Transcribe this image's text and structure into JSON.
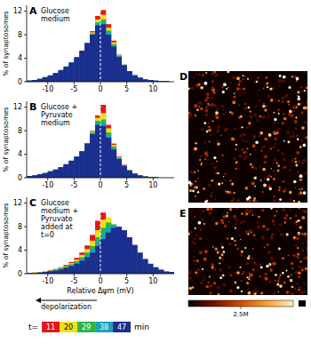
{
  "chart_data": [
    {
      "type": "histogram",
      "panel": "A",
      "title": "Glucose medium",
      "y_label": "% of synaptosomes",
      "bins": [
        -14,
        -13,
        -12,
        -11,
        -10,
        -9,
        -8,
        -7,
        -6,
        -5,
        -4,
        -3,
        -2,
        -1,
        0,
        1,
        2,
        3,
        4,
        5,
        6,
        7,
        8,
        9,
        10,
        11,
        12,
        13,
        14
      ],
      "xlim": [
        -14,
        14
      ],
      "xticks": [
        -10,
        -5,
        0,
        5,
        10
      ],
      "ylim": [
        0,
        13
      ],
      "yticks": [
        0,
        4,
        8,
        12
      ],
      "reference_lines": [
        {
          "x": 0,
          "line_style": "dashed",
          "color": "#ffffff"
        }
      ],
      "series": [
        {
          "color": "#e8141b",
          "values": [
            0.1,
            0.2,
            0.3,
            0.5,
            0.7,
            1.0,
            1.4,
            2.0,
            2.7,
            3.6,
            4.8,
            6.4,
            8.6,
            11.2,
            12.2,
            9.8,
            7.0,
            4.6,
            2.9,
            1.7,
            1.0,
            0.6,
            0.3,
            0.2,
            0.1,
            0.1,
            0,
            0
          ]
        },
        {
          "color": "#f2e01c",
          "values": [
            0.1,
            0.2,
            0.4,
            0.6,
            0.9,
            1.2,
            1.7,
            2.3,
            3.0,
            3.9,
            5.0,
            6.5,
            8.4,
            10.6,
            11.4,
            9.2,
            6.7,
            4.5,
            2.9,
            1.8,
            1.1,
            0.6,
            0.4,
            0.2,
            0.1,
            0.1,
            0,
            0
          ]
        },
        {
          "color": "#2fb34a",
          "values": [
            0.2,
            0.3,
            0.4,
            0.7,
            1.0,
            1.4,
            1.8,
            2.4,
            3.1,
            4.0,
            5.1,
            6.5,
            8.2,
            10.1,
            10.6,
            8.7,
            6.4,
            4.4,
            2.9,
            1.8,
            1.1,
            0.7,
            0.4,
            0.3,
            0.1,
            0.1,
            0.1,
            0
          ]
        },
        {
          "color": "#1aa3b8",
          "values": [
            0.2,
            0.3,
            0.5,
            0.7,
            1.0,
            1.4,
            1.9,
            2.5,
            3.2,
            4.1,
            5.2,
            6.6,
            8.1,
            9.8,
            10.2,
            8.4,
            6.2,
            4.3,
            2.8,
            1.8,
            1.1,
            0.7,
            0.4,
            0.3,
            0.2,
            0.1,
            0.1,
            0
          ]
        },
        {
          "color": "#1b2f8f",
          "values": [
            0.2,
            0.3,
            0.5,
            0.8,
            1.1,
            1.5,
            2.0,
            2.6,
            3.3,
            4.2,
            5.3,
            6.6,
            8.0,
            9.6,
            9.8,
            8.0,
            6.0,
            4.2,
            2.8,
            1.8,
            1.1,
            0.7,
            0.4,
            0.3,
            0.2,
            0.1,
            0.1,
            0
          ]
        }
      ]
    },
    {
      "type": "histogram",
      "panel": "B",
      "title": "Glucose + Pyruvate medium",
      "y_label": "% of synaptosomes",
      "bins": [
        -14,
        -13,
        -12,
        -11,
        -10,
        -9,
        -8,
        -7,
        -6,
        -5,
        -4,
        -3,
        -2,
        -1,
        0,
        1,
        2,
        3,
        4,
        5,
        6,
        7,
        8,
        9,
        10,
        11,
        12,
        13,
        14
      ],
      "xlim": [
        -14,
        14
      ],
      "xticks": [
        -10,
        -5,
        0,
        5,
        10
      ],
      "ylim": [
        0,
        13
      ],
      "yticks": [
        0,
        4,
        8,
        12
      ],
      "reference_lines": [
        {
          "x": 0,
          "line_style": "dashed",
          "color": "#ffffff"
        }
      ],
      "series": [
        {
          "color": "#e8141b",
          "values": [
            0.2,
            0.3,
            0.4,
            0.6,
            0.9,
            1.2,
            1.6,
            2.1,
            2.7,
            3.4,
            4.4,
            5.9,
            8.0,
            10.6,
            12.4,
            9.0,
            5.8,
            3.6,
            2.2,
            1.3,
            0.7,
            0.4,
            0.2,
            0.1,
            0.1,
            0,
            0,
            0
          ]
        },
        {
          "color": "#f2e01c",
          "values": [
            0.2,
            0.3,
            0.5,
            0.7,
            1.0,
            1.3,
            1.7,
            2.2,
            2.8,
            3.5,
            4.5,
            5.9,
            7.9,
            10.2,
            11.0,
            8.4,
            5.6,
            3.5,
            2.1,
            1.3,
            0.7,
            0.4,
            0.2,
            0.1,
            0.1,
            0,
            0,
            0
          ]
        },
        {
          "color": "#2fb34a",
          "values": [
            0.3,
            0.4,
            0.5,
            0.7,
            1.0,
            1.3,
            1.7,
            2.2,
            2.8,
            3.5,
            4.5,
            5.9,
            7.7,
            9.7,
            9.9,
            7.7,
            5.3,
            3.4,
            2.1,
            1.3,
            0.7,
            0.4,
            0.2,
            0.1,
            0.1,
            0,
            0,
            0
          ]
        },
        {
          "color": "#1aa3b8",
          "values": [
            0.3,
            0.4,
            0.6,
            0.8,
            1.1,
            1.4,
            1.8,
            2.3,
            2.9,
            3.6,
            4.5,
            5.9,
            7.6,
            9.3,
            9.3,
            7.2,
            5.0,
            3.3,
            2.0,
            1.2,
            0.7,
            0.4,
            0.2,
            0.1,
            0.1,
            0,
            0,
            0
          ]
        },
        {
          "color": "#1b2f8f",
          "values": [
            0.3,
            0.4,
            0.6,
            0.8,
            1.1,
            1.4,
            1.8,
            2.3,
            2.9,
            3.6,
            4.5,
            5.8,
            7.4,
            9.0,
            8.8,
            6.8,
            4.8,
            3.2,
            2.0,
            1.2,
            0.7,
            0.4,
            0.2,
            0.1,
            0.1,
            0,
            0,
            0
          ]
        }
      ]
    },
    {
      "type": "histogram",
      "panel": "C",
      "title": "Glucose medium + Pyruvate added at t=0",
      "y_label": "% of synaptosomes",
      "x_label": "Relative Δψm (mV)",
      "annotations": [
        {
          "text": "depolarization"
        }
      ],
      "legend": "bottom",
      "legend_title": "t=",
      "legend_unit": "min",
      "bins": [
        -14,
        -13,
        -12,
        -11,
        -10,
        -9,
        -8,
        -7,
        -6,
        -5,
        -4,
        -3,
        -2,
        -1,
        0,
        1,
        2,
        3,
        4,
        5,
        6,
        7,
        8,
        9,
        10,
        11,
        12,
        13,
        14
      ],
      "xlim": [
        -14,
        14
      ],
      "xticks": [
        -10,
        -5,
        0,
        5,
        10
      ],
      "ylim": [
        0,
        13
      ],
      "yticks": [
        0,
        4,
        8,
        12
      ],
      "reference_lines": [
        {
          "x": 0,
          "line_style": "dashed",
          "color": "#ffffff"
        }
      ],
      "series": [
        {
          "name": "11",
          "color": "#e8141b",
          "values": [
            0.1,
            0.2,
            0.3,
            0.4,
            0.6,
            0.8,
            1.1,
            1.5,
            2.0,
            2.7,
            3.6,
            4.8,
            6.6,
            9.0,
            10.4,
            9.4,
            7.2,
            5.2,
            3.6,
            2.4,
            1.6,
            1.0,
            0.6,
            0.4,
            0.2,
            0.1,
            0.1,
            0
          ]
        },
        {
          "name": "20",
          "color": "#f2e01c",
          "values": [
            0.1,
            0.2,
            0.3,
            0.4,
            0.5,
            0.7,
            1.0,
            1.3,
            1.8,
            2.4,
            3.2,
            4.2,
            5.6,
            7.4,
            9.2,
            9.6,
            8.2,
            6.3,
            4.5,
            3.1,
            2.1,
            1.3,
            0.8,
            0.5,
            0.3,
            0.2,
            0.1,
            0.1
          ]
        },
        {
          "name": "29",
          "color": "#2fb34a",
          "values": [
            0.1,
            0.1,
            0.2,
            0.3,
            0.5,
            0.7,
            0.9,
            1.2,
            1.6,
            2.1,
            2.8,
            3.6,
            4.7,
            6.2,
            7.8,
            8.7,
            8.4,
            7.2,
            5.6,
            4.1,
            2.9,
            1.9,
            1.2,
            0.8,
            0.5,
            0.3,
            0.2,
            0.1
          ]
        },
        {
          "name": "38",
          "color": "#1aa3b8",
          "values": [
            0.1,
            0.1,
            0.2,
            0.3,
            0.4,
            0.6,
            0.8,
            1.1,
            1.5,
            1.9,
            2.5,
            3.2,
            4.1,
            5.4,
            6.8,
            7.9,
            8.2,
            7.6,
            6.4,
            5.0,
            3.7,
            2.6,
            1.7,
            1.1,
            0.7,
            0.4,
            0.3,
            0.2
          ]
        },
        {
          "name": "47",
          "color": "#1b2f8f",
          "values": [
            0.1,
            0.1,
            0.2,
            0.3,
            0.4,
            0.5,
            0.7,
            1.0,
            1.3,
            1.7,
            2.2,
            2.8,
            3.6,
            4.7,
            5.9,
            7.0,
            7.8,
            8.0,
            7.4,
            6.2,
            4.9,
            3.6,
            2.5,
            1.7,
            1.1,
            0.7,
            0.4,
            0.3
          ]
        }
      ]
    }
  ],
  "images": [
    {
      "label": "D"
    },
    {
      "label": "E"
    }
  ],
  "colorbar": {
    "range": [
      0,
      5
    ],
    "ticks": [
      {
        "value": 2.5,
        "label": "2.5M"
      }
    ]
  }
}
